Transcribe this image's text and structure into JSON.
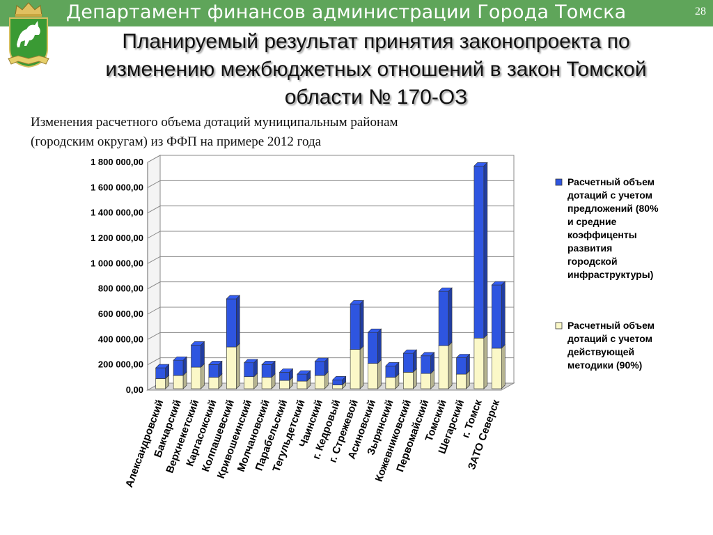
{
  "header": {
    "title": "Департамент финансов администрации Города Томска",
    "page_number": "28"
  },
  "slide": {
    "title_lines": [
      "Планируемый результат принятия законопроекта по",
      "изменению межбюджетных отношений в закон Томской",
      "области № 170-ОЗ"
    ],
    "subtitle_lines": [
      "Изменения расчетного объема дотаций муниципальным районам",
      "(городским округам) из ФФП  на примере 2012 года"
    ]
  },
  "colors": {
    "header_bar": "#5fa55a",
    "series_top": "#2e55e0",
    "series_base": "#fbf8c8",
    "crest_green": "#3a9a34"
  },
  "chart_data": {
    "type": "bar",
    "stacked": true,
    "three_d": true,
    "categories": [
      "Александровский",
      "Бакчарский",
      "Верхнекетский",
      "Каргасокский",
      "Колпашевский",
      "Кривошеинский",
      "Молчановский",
      "Парабельский",
      "Тегульдетский",
      "Чаинский",
      "г. Кедровый",
      "г. Стрежевой",
      "Асиновский",
      "Зырянский",
      "Кожевниковский",
      "Первомайский",
      "Томский",
      "Шегарский",
      "г. Томск",
      "ЗАТО Северск"
    ],
    "series": [
      {
        "name": "Расчетный объем дотаций с учетом действующей методики (90%)",
        "legend_lines": [
          "Расчетный объем",
          "дотаций с учетом",
          "действующей",
          "методики (90%)"
        ],
        "color": "#fbf8c8",
        "values": [
          80000,
          105000,
          170000,
          90000,
          330000,
          95000,
          90000,
          65000,
          60000,
          105000,
          30000,
          310000,
          200000,
          90000,
          130000,
          120000,
          340000,
          115000,
          400000,
          320000
        ]
      },
      {
        "name": "Расчетный объем дотаций с учетом предложений (80% и средние коэффиценты развития городской инфраструктуры)",
        "legend_lines": [
          "Расчетный объем",
          "дотаций с учетом",
          "предложений (80%",
          "и средние",
          "коэффиценты",
          "развития",
          "городской",
          "инфраструктуры)"
        ],
        "color": "#2e55e0",
        "totals": [
          165000,
          225000,
          345000,
          190000,
          710000,
          205000,
          190000,
          130000,
          115000,
          215000,
          70000,
          670000,
          445000,
          180000,
          280000,
          260000,
          770000,
          245000,
          1760000,
          820000
        ]
      }
    ],
    "ylim": [
      0,
      1800000
    ],
    "yticks": [
      0,
      200000,
      400000,
      600000,
      800000,
      1000000,
      1200000,
      1400000,
      1600000,
      1800000
    ],
    "ytick_labels": [
      "0,00",
      "200 000,00",
      "400 000,00",
      "600 000,00",
      "800 000,00",
      "1 000 000,00",
      "1 200 000,00",
      "1 400 000,00",
      "1 600 000,00",
      "1 800 000,00"
    ],
    "grid": true,
    "legend_position": "right"
  }
}
